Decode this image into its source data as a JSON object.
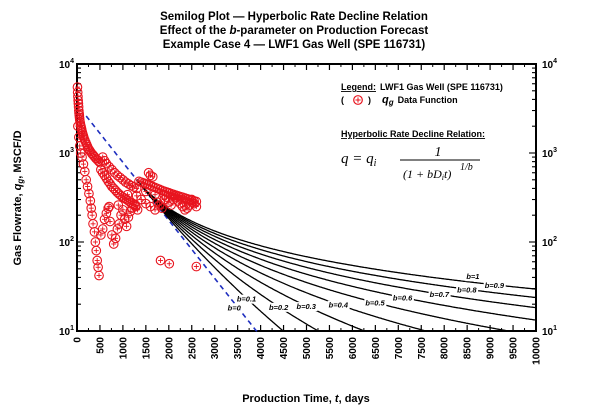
{
  "title": {
    "line1": "Semilog Plot — Hyperbolic Rate Decline Relation",
    "line2_pre": "Effect of the ",
    "line2_b": "b",
    "line2_post": "-parameter on Production Forecast",
    "line3": "Example Case 4 — LWF1 Gas Well (SPE 116731)"
  },
  "legend": {
    "heading": "Legend:",
    "well": "LWF1 Gas Well (SPE 116731)",
    "marker_open": "(",
    "marker_close": ")",
    "symbol_q": "q",
    "symbol_sub": "g",
    "series_name": "Data Function"
  },
  "equation": {
    "heading": "Hyperbolic Rate Decline Relation:",
    "lhs": "q = q",
    "lhs_sub": "i",
    "numerator": "1",
    "denominator": "(1 + bD",
    "den_sub": "i",
    "den_tail": "t)",
    "exponent": "1/b"
  },
  "axes": {
    "xlabel_pre": "Production Time, ",
    "xlabel_var": "t",
    "xlabel_post": ", days",
    "ylabel": "Gas Flowrate, q_g, MSCF/D"
  },
  "colors": {
    "data_marker": "#e8141e",
    "model_curves": "#000000",
    "bound_curves": "#1f2fbf"
  },
  "chart_data": {
    "type": "scatter",
    "x_scale": "linear",
    "y_scale": "log",
    "xlim": [
      0,
      10000
    ],
    "ylim": [
      10,
      10000
    ],
    "x_ticks": [
      0,
      500,
      1000,
      1500,
      2000,
      2500,
      3000,
      3500,
      4000,
      4500,
      5000,
      5500,
      6000,
      6500,
      7000,
      7500,
      8000,
      8500,
      9000,
      9500,
      10000
    ],
    "y_ticks": [
      {
        "value": 10,
        "base": "10",
        "exp": "1"
      },
      {
        "value": 100,
        "base": "10",
        "exp": "2"
      },
      {
        "value": 1000,
        "base": "10",
        "exp": "3"
      },
      {
        "value": 10000,
        "base": "10",
        "exp": "4"
      }
    ],
    "grid": false,
    "legend_position": "top-right",
    "data_series": {
      "name": "Data Function",
      "points": [
        [
          10,
          5500
        ],
        [
          15,
          4800
        ],
        [
          20,
          4300
        ],
        [
          25,
          3900
        ],
        [
          30,
          3600
        ],
        [
          35,
          3300
        ],
        [
          40,
          3000
        ],
        [
          45,
          2800
        ],
        [
          50,
          2650
        ],
        [
          55,
          2500
        ],
        [
          60,
          2350
        ],
        [
          70,
          2200
        ],
        [
          80,
          2050
        ],
        [
          90,
          1950
        ],
        [
          100,
          1850
        ],
        [
          110,
          1750
        ],
        [
          120,
          1680
        ],
        [
          130,
          1600
        ],
        [
          140,
          1550
        ],
        [
          150,
          1480
        ],
        [
          170,
          1400
        ],
        [
          190,
          1320
        ],
        [
          210,
          1250
        ],
        [
          230,
          1180
        ],
        [
          250,
          1120
        ],
        [
          270,
          1080
        ],
        [
          290,
          1040
        ],
        [
          320,
          990
        ],
        [
          350,
          950
        ],
        [
          380,
          910
        ],
        [
          410,
          870
        ],
        [
          440,
          840
        ],
        [
          470,
          810
        ],
        [
          500,
          780
        ],
        [
          20,
          2000
        ],
        [
          40,
          1500
        ],
        [
          60,
          1200
        ],
        [
          80,
          1000
        ],
        [
          110,
          900
        ],
        [
          140,
          750
        ],
        [
          170,
          620
        ],
        [
          200,
          500
        ],
        [
          230,
          420
        ],
        [
          260,
          350
        ],
        [
          290,
          290
        ],
        [
          310,
          240
        ],
        [
          330,
          200
        ],
        [
          350,
          160
        ],
        [
          380,
          130
        ],
        [
          400,
          100
        ],
        [
          420,
          80
        ],
        [
          440,
          62
        ],
        [
          460,
          52
        ],
        [
          480,
          42
        ],
        [
          520,
          120
        ],
        [
          560,
          140
        ],
        [
          600,
          180
        ],
        [
          640,
          210
        ],
        [
          680,
          240
        ],
        [
          720,
          170
        ],
        [
          760,
          120
        ],
        [
          800,
          95
        ],
        [
          840,
          110
        ],
        [
          880,
          140
        ],
        [
          920,
          160
        ],
        [
          960,
          200
        ],
        [
          1000,
          230
        ],
        [
          1040,
          180
        ],
        [
          1080,
          150
        ],
        [
          1120,
          190
        ],
        [
          1160,
          220
        ],
        [
          1200,
          240
        ],
        [
          1240,
          260
        ],
        [
          1280,
          250
        ],
        [
          1320,
          230
        ],
        [
          520,
          650
        ],
        [
          560,
          600
        ],
        [
          600,
          560
        ],
        [
          640,
          520
        ],
        [
          680,
          480
        ],
        [
          720,
          450
        ],
        [
          760,
          420
        ],
        [
          800,
          400
        ],
        [
          840,
          380
        ],
        [
          880,
          360
        ],
        [
          920,
          345
        ],
        [
          960,
          330
        ],
        [
          1000,
          320
        ],
        [
          1040,
          310
        ],
        [
          1080,
          300
        ],
        [
          1120,
          290
        ],
        [
          1160,
          280
        ],
        [
          1200,
          272
        ],
        [
          1240,
          265
        ],
        [
          1280,
          258
        ],
        [
          560,
          900
        ],
        [
          600,
          820
        ],
        [
          640,
          760
        ],
        [
          700,
          700
        ],
        [
          760,
          650
        ],
        [
          820,
          600
        ],
        [
          880,
          560
        ],
        [
          940,
          530
        ],
        [
          1000,
          500
        ],
        [
          1060,
          470
        ],
        [
          1120,
          450
        ],
        [
          1180,
          430
        ],
        [
          1240,
          415
        ],
        [
          1300,
          400
        ],
        [
          1350,
          480
        ],
        [
          1400,
          470
        ],
        [
          1450,
          460
        ],
        [
          1500,
          450
        ],
        [
          1550,
          440
        ],
        [
          1600,
          430
        ],
        [
          1650,
          420
        ],
        [
          1700,
          410
        ],
        [
          1750,
          400
        ],
        [
          1800,
          390
        ],
        [
          1850,
          380
        ],
        [
          1900,
          372
        ],
        [
          1950,
          365
        ],
        [
          2000,
          358
        ],
        [
          2050,
          350
        ],
        [
          2100,
          343
        ],
        [
          2150,
          337
        ],
        [
          2200,
          330
        ],
        [
          2250,
          324
        ],
        [
          2300,
          318
        ],
        [
          2350,
          312
        ],
        [
          2400,
          306
        ],
        [
          2450,
          300
        ],
        [
          2500,
          295
        ],
        [
          2550,
          290
        ],
        [
          2600,
          285
        ],
        [
          1400,
          300
        ],
        [
          1500,
          270
        ],
        [
          1600,
          250
        ],
        [
          1700,
          230
        ],
        [
          1750,
          280
        ],
        [
          1800,
          260
        ],
        [
          1850,
          240
        ],
        [
          1900,
          300
        ],
        [
          1950,
          320
        ],
        [
          2000,
          280
        ],
        [
          2050,
          260
        ],
        [
          2100,
          300
        ],
        [
          2150,
          320
        ],
        [
          2200,
          290
        ],
        [
          2250,
          270
        ],
        [
          2300,
          250
        ],
        [
          2350,
          230
        ],
        [
          2400,
          240
        ],
        [
          2450,
          260
        ],
        [
          2500,
          280
        ],
        [
          2550,
          270
        ],
        [
          2600,
          250
        ],
        [
          1820,
          62
        ],
        [
          2010,
          57
        ],
        [
          2600,
          53
        ],
        [
          700,
          250
        ],
        [
          900,
          260
        ],
        [
          1100,
          340
        ],
        [
          1300,
          330
        ],
        [
          1500,
          370
        ],
        [
          1700,
          340
        ],
        [
          1900,
          340
        ],
        [
          2100,
          330
        ],
        [
          2300,
          300
        ],
        [
          2500,
          300
        ],
        [
          1600,
          560
        ],
        [
          1650,
          540
        ],
        [
          1560,
          600
        ]
      ]
    },
    "model": {
      "qi": 500,
      "Di": 0.0015,
      "t0": 1300,
      "curves_b": [
        0,
        0.1,
        0.2,
        0.3,
        0.4,
        0.5,
        0.6,
        0.7,
        0.8,
        0.9,
        1.0
      ],
      "bounds_b": [
        0,
        1.0
      ],
      "curve_labels": [
        {
          "b": 0,
          "text": "b=0",
          "x": 3500
        },
        {
          "b": 0.1,
          "text": "b=0.1",
          "x": 3700
        },
        {
          "b": 0.2,
          "text": "b=0.2",
          "x": 4400
        },
        {
          "b": 0.3,
          "text": "b=0.3",
          "x": 5000
        },
        {
          "b": 0.4,
          "text": "b=0.4",
          "x": 5700
        },
        {
          "b": 0.5,
          "text": "b=0.5",
          "x": 6500
        },
        {
          "b": 0.6,
          "text": "b=0.6",
          "x": 7100
        },
        {
          "b": 0.7,
          "text": "b=0.7",
          "x": 7900
        },
        {
          "b": 0.8,
          "text": "b=0.8",
          "x": 8500
        },
        {
          "b": 0.9,
          "text": "b=0.9",
          "x": 9100
        },
        {
          "b": 1.0,
          "text": "b=1",
          "x": 8700
        }
      ]
    }
  }
}
